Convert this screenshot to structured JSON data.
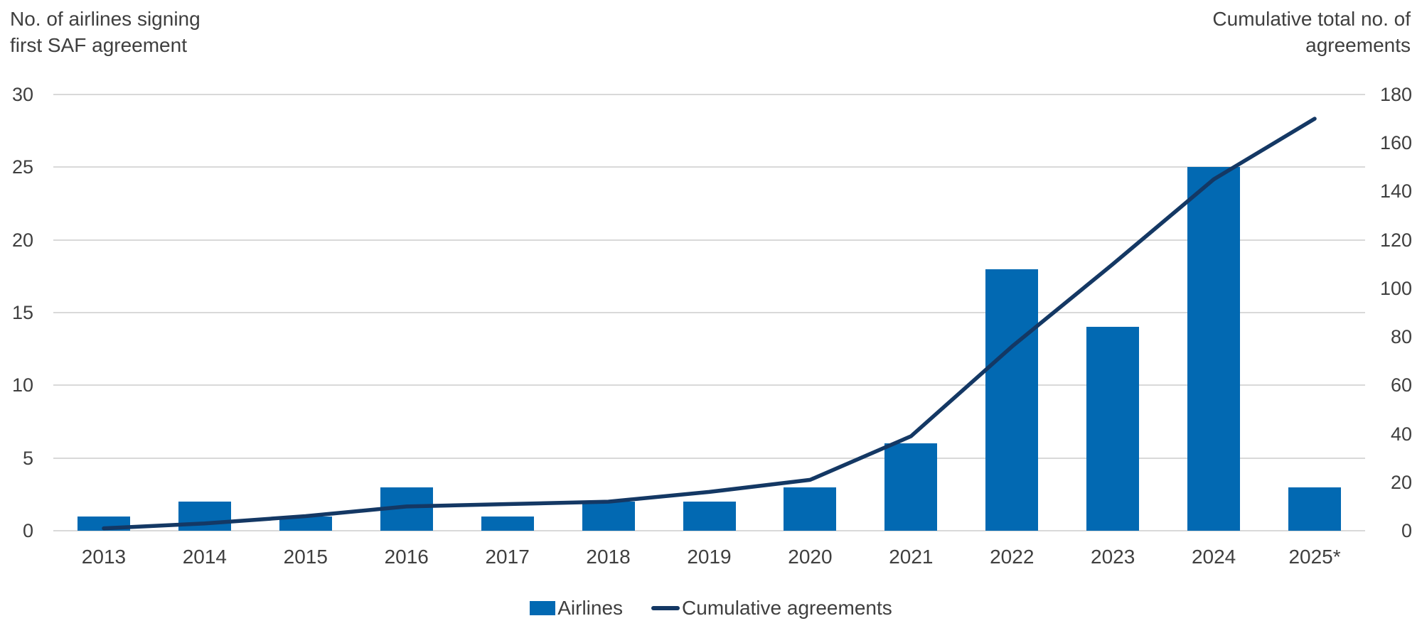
{
  "header": {
    "left_title_line1": "No. of airlines signing",
    "left_title_line2": "first SAF agreement",
    "right_title_line1": "Cumulative total no. of",
    "right_title_line2": "agreements"
  },
  "legend": {
    "items": [
      {
        "label": "Airlines",
        "type": "bar",
        "color": "#0269b2"
      },
      {
        "label": "Cumulative agreements",
        "type": "line",
        "color": "#143864"
      }
    ]
  },
  "colors": {
    "bar": "#0269b2",
    "line": "#143864",
    "gridline": "#d9d9d9",
    "text": "#3f3f3f"
  },
  "chart_data": {
    "type": "bar",
    "subtype": "bar-line-combo-dual-axis",
    "categories": [
      "2013",
      "2014",
      "2015",
      "2016",
      "2017",
      "2018",
      "2019",
      "2020",
      "2021",
      "2022",
      "2023",
      "2024",
      "2025*"
    ],
    "series": [
      {
        "name": "Airlines",
        "type": "bar",
        "axis": "left",
        "color": "#0269b2",
        "values": [
          1,
          2,
          1,
          3,
          1,
          2,
          2,
          3,
          6,
          18,
          14,
          25,
          3
        ]
      },
      {
        "name": "Cumulative agreements",
        "type": "line",
        "axis": "right",
        "color": "#143864",
        "values": [
          1,
          3,
          6,
          10,
          11,
          12,
          16,
          21,
          39,
          76,
          110,
          145,
          170
        ]
      }
    ],
    "left_axis": {
      "title": "No. of airlines signing first SAF agreement",
      "min": 0,
      "max": 30,
      "tick_step": 5,
      "ticks": [
        0,
        5,
        10,
        15,
        20,
        25,
        30
      ]
    },
    "right_axis": {
      "title": "Cumulative total no. of agreements",
      "min": 0,
      "max": 180,
      "tick_step": 20,
      "ticks": [
        0,
        20,
        40,
        60,
        80,
        100,
        120,
        140,
        160,
        180
      ]
    },
    "grid": "horizontal gridlines aligned to left-axis ticks",
    "legend_position": "bottom-center"
  }
}
